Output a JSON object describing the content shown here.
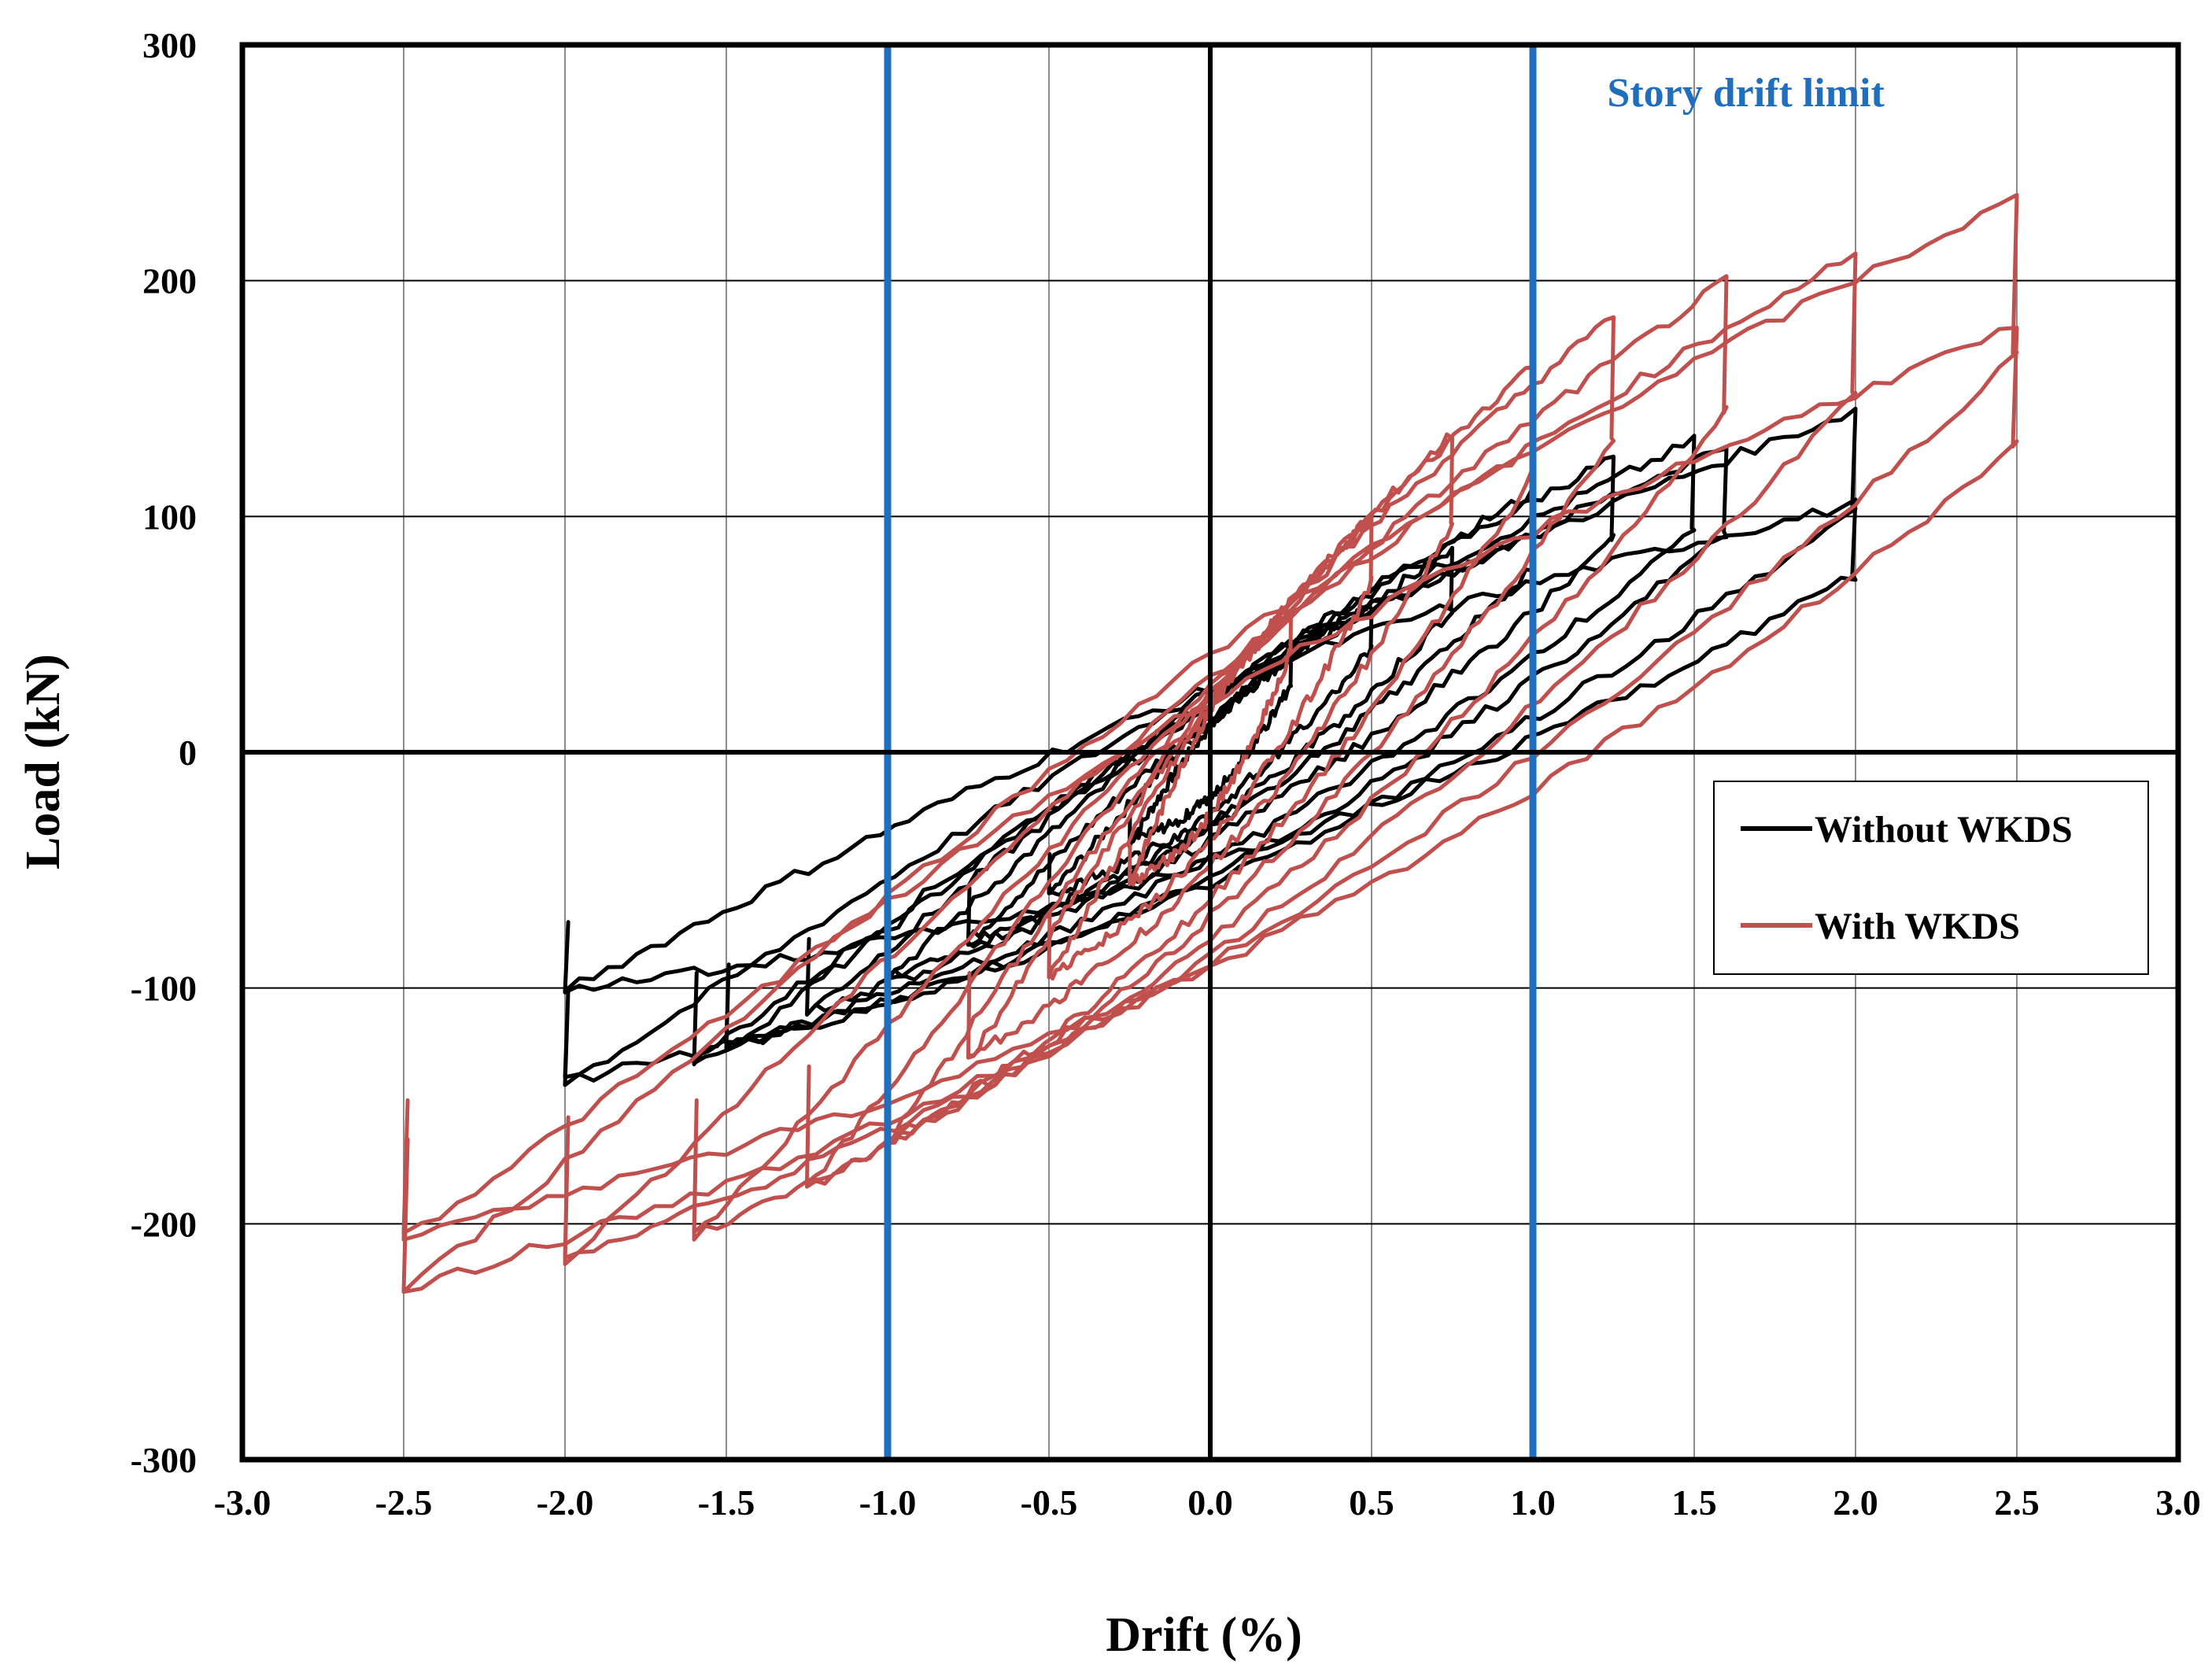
{
  "chart_data": {
    "type": "line",
    "title": "",
    "xlabel": "Drift (%)",
    "ylabel": "Load (kN)",
    "xlim": [
      -3.0,
      3.0
    ],
    "ylim": [
      -300,
      300
    ],
    "x_ticks": [
      -3.0,
      -2.5,
      -2.0,
      -1.5,
      -1.0,
      -0.5,
      0.0,
      0.5,
      1.0,
      1.5,
      2.0,
      2.5,
      3.0
    ],
    "x_tick_labels": [
      "-3.0",
      "-2.5",
      "-2.0",
      "-1.5",
      "-1.0",
      "-0.5",
      "0.0",
      "0.5",
      "1.0",
      "1.5",
      "2.0",
      "2.5",
      "3.0"
    ],
    "y_ticks": [
      -300,
      -200,
      -100,
      0,
      100,
      200,
      300
    ],
    "y_tick_labels": [
      "-300",
      "-200",
      "-100",
      "0",
      "100",
      "200",
      "300"
    ],
    "grid": true,
    "reference_lines": [
      {
        "axis": "x",
        "value": -1.0,
        "color": "#1f6fbd"
      },
      {
        "axis": "x",
        "value": 1.0,
        "color": "#1f6fbd"
      }
    ],
    "annotation": {
      "text": "Story drift limit",
      "color": "#1f6fbd",
      "x": 1.66,
      "y": 280
    },
    "legend_position": "right-middle",
    "series": [
      {
        "name": "Without WKDS",
        "color": "#000000",
        "cycles": [
          {
            "peak_drift": 0.25,
            "peak_pos": 40,
            "peak_neg": -38,
            "width": 12
          },
          {
            "peak_drift": 0.5,
            "peak_pos": 62,
            "peak_neg": -60,
            "width": 15
          },
          {
            "peak_drift": 0.75,
            "peak_pos": 85,
            "peak_neg": -80,
            "width": 17
          },
          {
            "peak_drift": 1.0,
            "peak_pos": 110,
            "peak_neg": -95,
            "width": 20
          },
          {
            "peak_drift": 1.25,
            "peak_pos": 125,
            "peak_neg": -110,
            "width": 22
          },
          {
            "peak_drift": 1.5,
            "peak_pos": 132,
            "peak_neg": -125,
            "width": 25
          },
          {
            "peak_drift": 1.6,
            "peak_pos": 130,
            "peak_neg": -130,
            "width": 28
          },
          {
            "peak_drift": 2.0,
            "peak_pos": 145,
            "peak_neg": -140,
            "width": 32
          },
          {
            "peak_drift": 2.0,
            "peak_pos": 105,
            "peak_neg": -100,
            "width": 30
          }
        ]
      },
      {
        "name": "With WKDS",
        "color": "#c0504d",
        "cycles": [
          {
            "peak_drift": 0.25,
            "peak_pos": 60,
            "peak_neg": -55,
            "width": 18
          },
          {
            "peak_drift": 0.5,
            "peak_pos": 100,
            "peak_neg": -95,
            "width": 22
          },
          {
            "peak_drift": 0.75,
            "peak_pos": 135,
            "peak_neg": -130,
            "width": 26
          },
          {
            "peak_drift": 1.0,
            "peak_pos": 165,
            "peak_neg": -165,
            "width": 32
          },
          {
            "peak_drift": 1.25,
            "peak_pos": 185,
            "peak_neg": -185,
            "width": 36
          },
          {
            "peak_drift": 1.6,
            "peak_pos": 200,
            "peak_neg": -205,
            "width": 40
          },
          {
            "peak_drift": 2.0,
            "peak_pos": 212,
            "peak_neg": -215,
            "width": 45
          },
          {
            "peak_drift": 2.5,
            "peak_pos": 235,
            "peak_neg": -228,
            "width": 50
          },
          {
            "peak_drift": 2.5,
            "peak_pos": 180,
            "peak_neg": -205,
            "width": 45
          }
        ]
      }
    ]
  }
}
